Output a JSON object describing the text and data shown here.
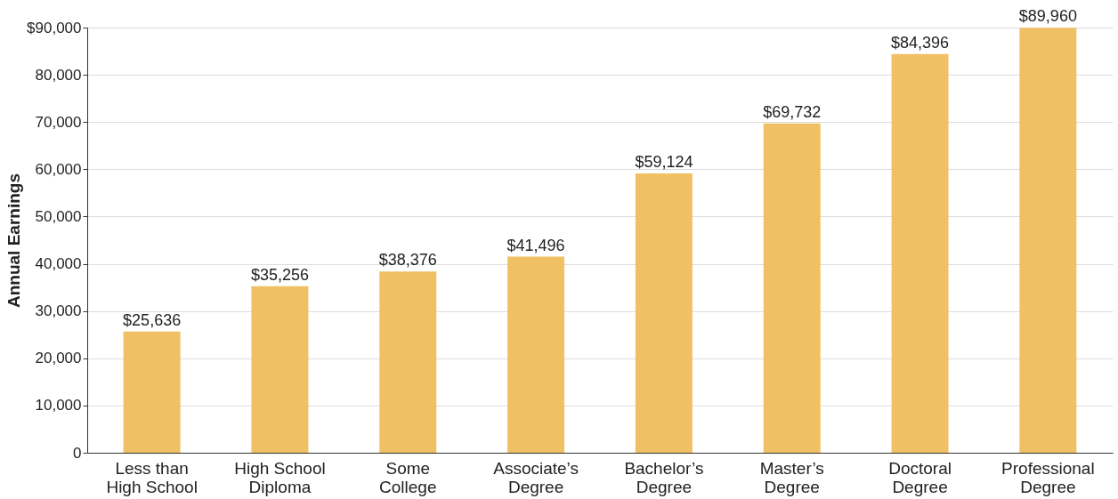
{
  "chart_data": {
    "type": "bar",
    "ylabel": "Annual Earnings",
    "categories": [
      "Less than\nHigh School",
      "High School\nDiploma",
      "Some\nCollege",
      "Associate’s\nDegree",
      "Bachelor’s\nDegree",
      "Master’s\nDegree",
      "Doctoral\nDegree",
      "Professional\nDegree"
    ],
    "values": [
      25636,
      35256,
      38376,
      41496,
      59124,
      69732,
      84396,
      89960
    ],
    "value_labels": [
      "$25,636",
      "$35,256",
      "$38,376",
      "$41,496",
      "$59,124",
      "$69,732",
      "$84,396",
      "$89,960"
    ],
    "color": "#f0c064",
    "ylim": [
      0,
      90000
    ],
    "yticks": [
      {
        "value": 0,
        "label": "0"
      },
      {
        "value": 10000,
        "label": "10,000"
      },
      {
        "value": 20000,
        "label": "20,000"
      },
      {
        "value": 30000,
        "label": "30,000"
      },
      {
        "value": 40000,
        "label": "40,000"
      },
      {
        "value": 50000,
        "label": "50,000"
      },
      {
        "value": 60000,
        "label": "60,000"
      },
      {
        "value": 70000,
        "label": "70,000"
      },
      {
        "value": 80000,
        "label": "80,000"
      },
      {
        "value": 90000,
        "label": "$90,000"
      }
    ],
    "grid": "y"
  }
}
